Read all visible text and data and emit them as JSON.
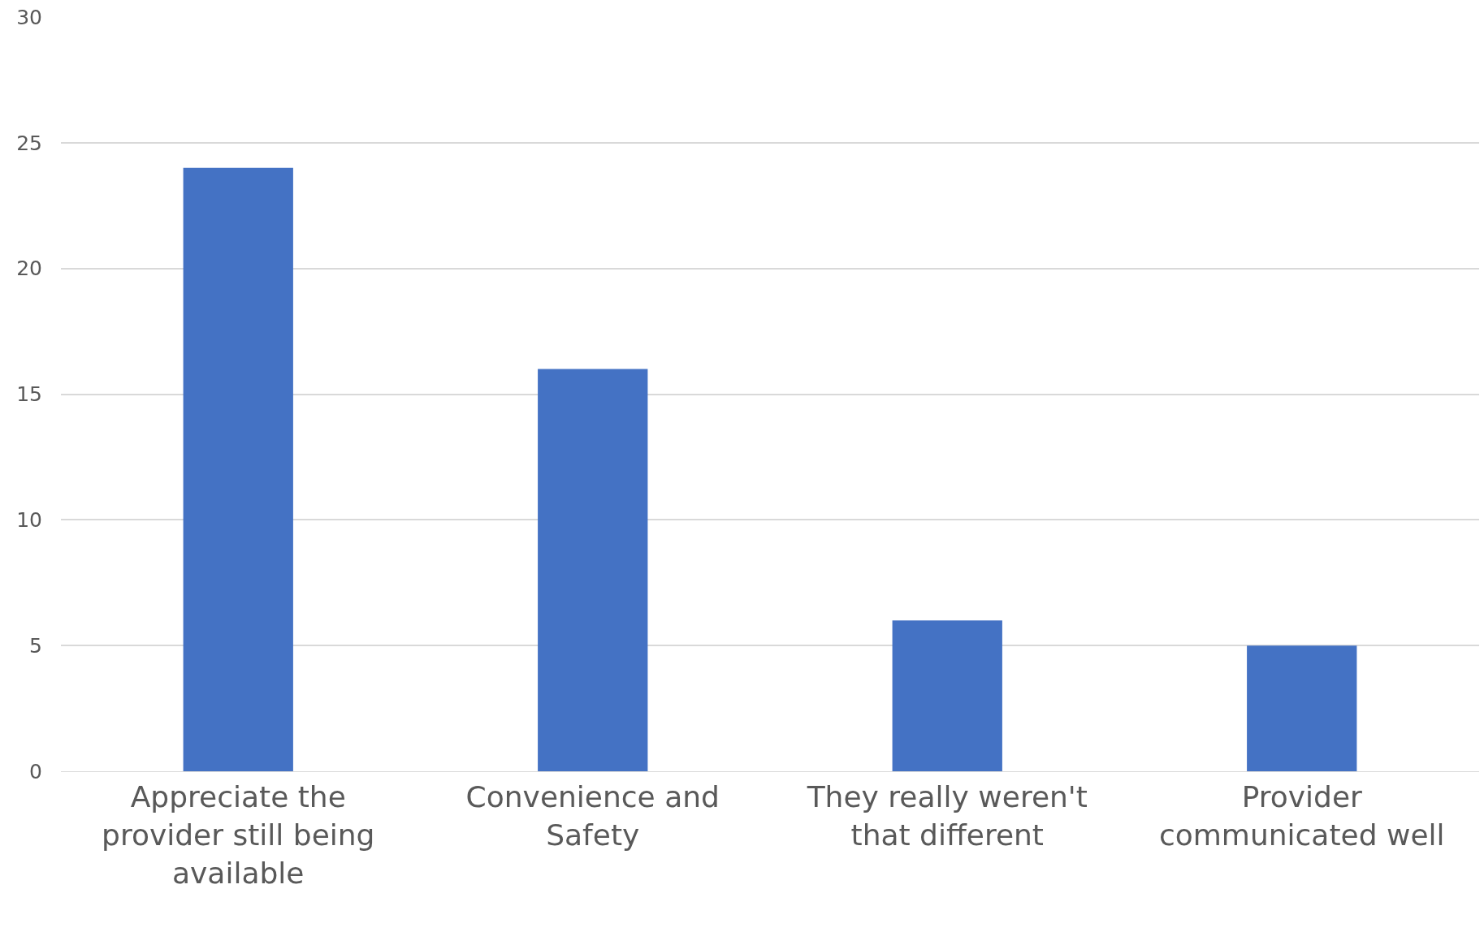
{
  "chart_data": {
    "type": "bar",
    "categories": [
      "Appreciate the provider still being available",
      "Convenience and Safety",
      "They really weren't that different",
      "Provider communicated well"
    ],
    "values": [
      24,
      16,
      6,
      5
    ],
    "color": "#4472c4",
    "ylim": [
      0,
      30
    ],
    "yticks": [
      0,
      5,
      10,
      15,
      20,
      25,
      30
    ],
    "grid": "y"
  }
}
